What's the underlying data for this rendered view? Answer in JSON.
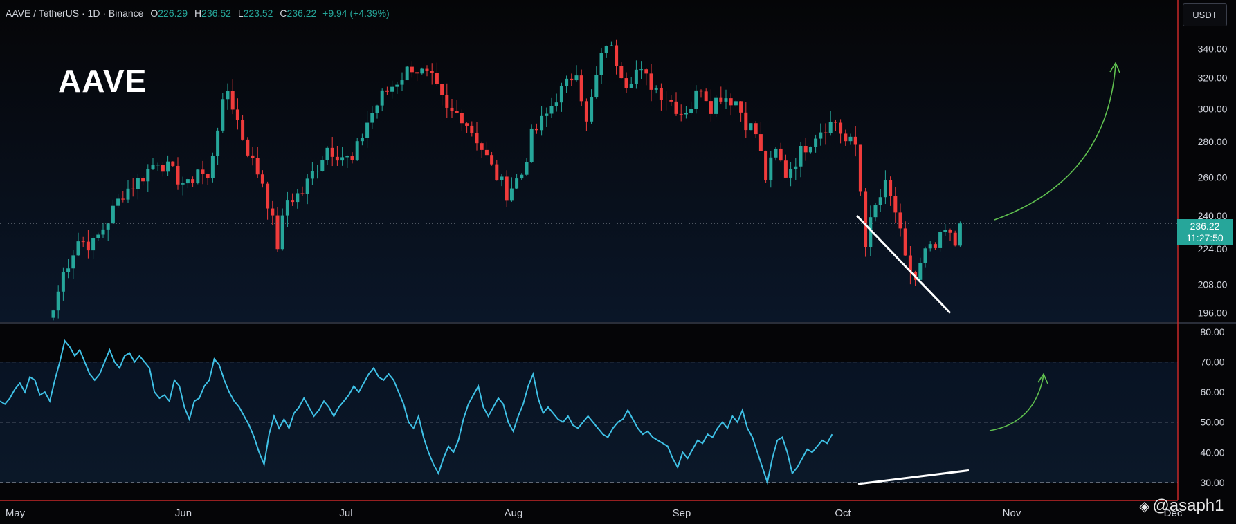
{
  "header": {
    "symbol": "AAVE / TetherUS · 1D · Binance",
    "o_label": "O",
    "o_value": "226.29",
    "h_label": "H",
    "h_value": "236.52",
    "l_label": "L",
    "l_value": "223.52",
    "c_label": "C",
    "c_value": "236.22",
    "change": "+9.94 (+4.39%)"
  },
  "overlay_title": "AAVE",
  "currency_button": "USDT",
  "price_tag": {
    "price": "236.22",
    "countdown": "11:27:50"
  },
  "watermark": "@asaph1",
  "colors": {
    "up": "#26a69a",
    "down": "#ef3b3b",
    "rsi": "#3fc1e6",
    "arrow": "#5fbf4f",
    "axis_line": "#c62828",
    "background": "#050507"
  },
  "chart_data": [
    {
      "type": "candlestick",
      "title": "AAVE / TetherUS · 1D · Binance",
      "y_ticks": [
        196.0,
        208.0,
        224.0,
        240.0,
        260.0,
        280.0,
        300.0,
        320.0,
        340.0
      ],
      "y_scale": "log",
      "ylim": [
        192,
        372
      ],
      "x_ticks": [
        "May",
        "Jun",
        "Jul",
        "Aug",
        "Sep",
        "Oct",
        "Nov",
        "Dec"
      ],
      "last_price": 236.22,
      "ohlc_summary": {
        "open": 226.29,
        "high": 236.52,
        "low": 223.52,
        "close": 236.22
      },
      "close_path": [
        [
          0,
          197
        ],
        [
          2,
          213
        ],
        [
          5,
          228
        ],
        [
          8,
          226
        ],
        [
          11,
          238
        ],
        [
          14,
          252
        ],
        [
          17,
          258
        ],
        [
          21,
          270
        ],
        [
          24,
          262
        ],
        [
          27,
          255
        ],
        [
          29,
          265
        ],
        [
          31,
          258
        ],
        [
          33,
          290
        ],
        [
          35,
          312
        ],
        [
          38,
          283
        ],
        [
          40,
          268
        ],
        [
          42,
          258
        ],
        [
          45,
          226
        ],
        [
          47,
          248
        ],
        [
          50,
          252
        ],
        [
          52,
          262
        ],
        [
          55,
          277
        ],
        [
          58,
          272
        ],
        [
          60,
          268
        ],
        [
          63,
          292
        ],
        [
          66,
          308
        ],
        [
          69,
          318
        ],
        [
          72,
          328
        ],
        [
          76,
          318
        ],
        [
          79,
          298
        ],
        [
          82,
          296
        ],
        [
          85,
          282
        ],
        [
          88,
          265
        ],
        [
          91,
          252
        ],
        [
          94,
          262
        ],
        [
          96,
          283
        ],
        [
          99,
          296
        ],
        [
          101,
          308
        ],
        [
          103,
          315
        ],
        [
          105,
          327
        ],
        [
          107,
          290
        ],
        [
          109,
          320
        ],
        [
          111,
          345
        ],
        [
          113,
          332
        ],
        [
          115,
          318
        ],
        [
          117,
          325
        ],
        [
          120,
          316
        ],
        [
          123,
          308
        ],
        [
          126,
          298
        ],
        [
          128,
          302
        ],
        [
          130,
          315
        ],
        [
          132,
          302
        ],
        [
          134,
          309
        ],
        [
          137,
          305
        ],
        [
          139,
          292
        ],
        [
          141,
          285
        ],
        [
          143,
          260
        ],
        [
          145,
          274
        ],
        [
          147,
          262
        ],
        [
          149,
          270
        ],
        [
          151,
          278
        ],
        [
          153,
          285
        ],
        [
          155,
          290
        ],
        [
          157,
          292
        ],
        [
          159,
          280
        ],
        [
          161,
          278
        ],
        [
          163,
          228
        ],
        [
          165,
          244
        ],
        [
          167,
          255
        ],
        [
          169,
          242
        ],
        [
          171,
          218
        ],
        [
          173,
          210
        ],
        [
          175,
          222
        ],
        [
          177,
          224
        ],
        [
          179,
          232
        ],
        [
          181,
          226
        ],
        [
          182,
          236.22
        ]
      ],
      "annotations": [
        "descending white trendline on price lows",
        "green curved arrow pointing up"
      ]
    },
    {
      "type": "line",
      "title": "",
      "series": [
        {
          "name": "",
          "values": [
            57,
            56,
            58,
            61,
            63,
            60,
            65,
            64,
            59,
            60,
            57,
            64,
            70,
            77,
            75,
            72,
            74,
            70,
            66,
            64,
            66,
            70,
            74,
            70,
            68,
            72,
            73,
            70,
            72,
            70,
            68,
            60,
            58,
            59,
            57,
            64,
            62,
            55,
            51,
            57,
            58,
            62,
            64,
            71,
            69,
            64,
            60,
            57,
            55,
            52,
            49,
            45,
            40,
            36,
            46,
            52,
            48,
            51,
            48,
            53,
            55,
            58,
            55,
            52,
            54,
            57,
            55,
            52,
            55,
            57,
            59,
            62,
            60,
            63,
            66,
            68,
            65,
            64,
            66,
            64,
            60,
            56,
            50,
            48,
            52,
            45,
            40,
            36,
            33,
            38,
            42,
            40,
            44,
            51,
            56,
            59,
            62,
            55,
            52,
            55,
            58,
            56,
            50,
            47,
            52,
            56,
            62,
            66,
            58,
            53,
            55,
            53,
            51,
            50,
            52,
            49,
            48,
            50,
            52,
            50,
            48,
            46,
            45,
            48,
            50,
            51,
            54,
            51,
            48,
            46,
            47,
            45,
            44,
            43,
            42,
            38,
            35,
            40,
            38,
            41,
            44,
            43,
            46,
            45,
            48,
            50,
            48,
            52,
            50,
            54,
            48,
            45,
            40,
            35,
            30,
            38,
            44,
            45,
            40,
            33,
            35,
            38,
            41,
            40,
            42,
            44,
            43,
            46
          ]
        }
      ],
      "y_ticks": [
        30.0,
        40.0,
        50.0,
        60.0,
        70.0,
        80.0
      ],
      "ylim": [
        24,
        83
      ],
      "reference_lines": [
        30,
        50,
        70
      ],
      "x_ticks": [
        "May",
        "Jun",
        "Jul",
        "Aug",
        "Sep",
        "Oct",
        "Nov",
        "Dec"
      ],
      "annotations": [
        "rising white trendline on RSI lows (bullish divergence)",
        "green curved arrow pointing up"
      ]
    }
  ]
}
